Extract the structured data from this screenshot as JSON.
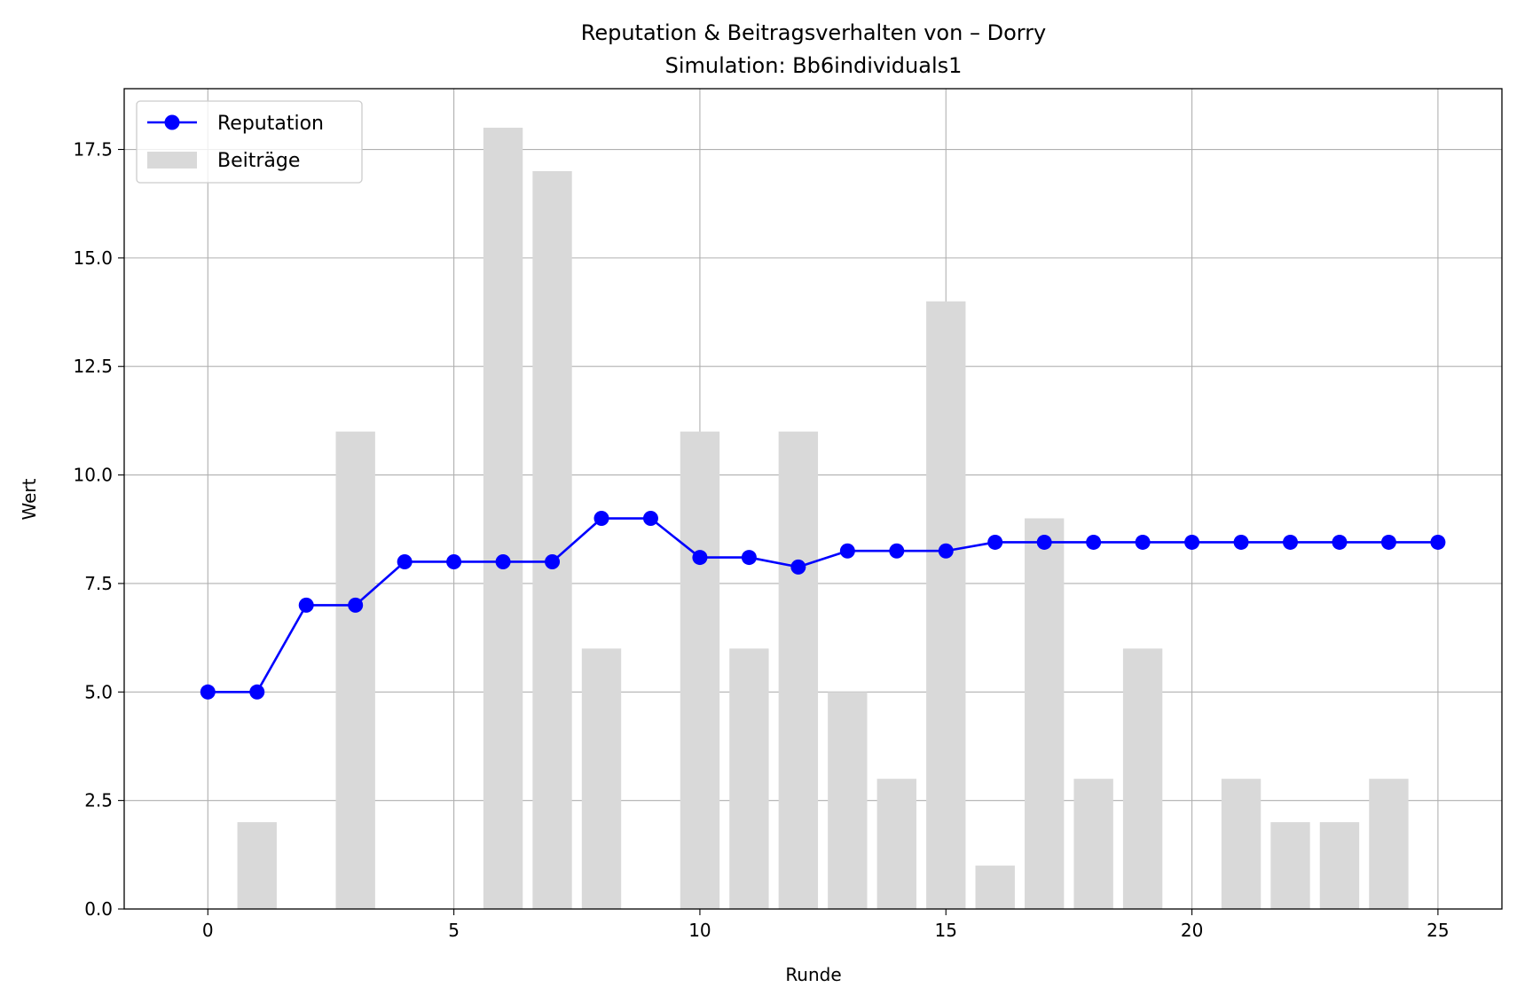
{
  "chart_data": {
    "type": "bar+line",
    "title": "Reputation & Beitragsverhalten von – Dorry",
    "subtitle": "Simulation: Bb6individuals1",
    "xlabel": "Runde",
    "ylabel": "Wert",
    "xlim": [
      -1.7,
      26.3
    ],
    "ylim": [
      0,
      18.9
    ],
    "xticks": [
      0,
      5,
      10,
      15,
      20,
      25
    ],
    "yticks": [
      0.0,
      2.5,
      5.0,
      7.5,
      10.0,
      12.5,
      15.0,
      17.5
    ],
    "ytick_labels": [
      "0.0",
      "2.5",
      "5.0",
      "7.5",
      "10.0",
      "12.5",
      "15.0",
      "17.5"
    ],
    "grid": true,
    "legend_position": "top-left",
    "legend": {
      "reputation": "Reputation",
      "contributions": "Beiträge"
    },
    "colors": {
      "reputation": "#0000ff",
      "contributions": "#d9d9d9",
      "grid": "#b0b0b0"
    },
    "x": [
      0,
      1,
      2,
      3,
      4,
      5,
      6,
      7,
      8,
      9,
      10,
      11,
      12,
      13,
      14,
      15,
      16,
      17,
      18,
      19,
      20,
      21,
      22,
      23,
      24,
      25
    ],
    "series": [
      {
        "name": "Beiträge",
        "kind": "bar",
        "values": [
          0,
          2,
          0,
          11,
          0,
          0,
          18,
          17,
          6,
          0,
          11,
          6,
          11,
          5,
          3,
          14,
          1,
          9,
          3,
          6,
          0,
          3,
          2,
          2,
          3,
          0
        ]
      },
      {
        "name": "Reputation",
        "kind": "line",
        "values": [
          5.0,
          5.0,
          7.0,
          7.0,
          8.0,
          8.0,
          8.0,
          8.0,
          9.0,
          9.0,
          8.1,
          8.1,
          7.88,
          8.25,
          8.25,
          8.25,
          8.45,
          8.45,
          8.45,
          8.45,
          8.45,
          8.45,
          8.45,
          8.45,
          8.45,
          8.45
        ]
      }
    ]
  }
}
